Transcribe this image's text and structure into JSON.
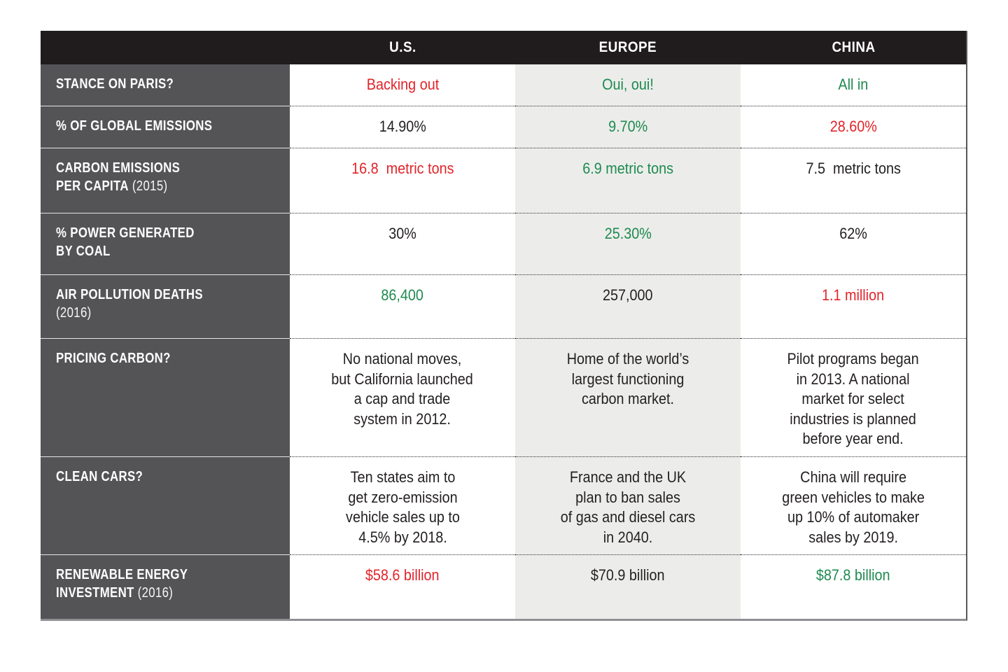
{
  "palette": {
    "red": "#e2242a",
    "green": "#1e8a4f",
    "dark": "#231f20",
    "header_bg": "#201c1d",
    "label_bg": "#545457",
    "europe_bg": "#ecedeb",
    "border_right": "#58585a",
    "border_bottom": "#909094"
  },
  "chart_data": {
    "type": "table",
    "columns": [
      "U.S.",
      "EUROPE",
      "CHINA"
    ],
    "rows": [
      {
        "label": "STANCE ON PARIS?",
        "paren": "",
        "cells": [
          {
            "text": "Backing out",
            "color": "red"
          },
          {
            "text": "Oui, oui!",
            "color": "green"
          },
          {
            "text": "All in",
            "color": "green"
          }
        ]
      },
      {
        "label": "% OF GLOBAL EMISSIONS",
        "paren": "",
        "cells": [
          {
            "text": "14.90%",
            "color": "dark"
          },
          {
            "text": "9.70%",
            "color": "green"
          },
          {
            "text": "28.60%",
            "color": "red"
          }
        ]
      },
      {
        "label": "CARBON EMISSIONS\nPER CAPITA",
        "paren": " (2015)",
        "cells": [
          {
            "text": "16.8  metric tons",
            "color": "red"
          },
          {
            "text": "6.9 metric tons",
            "color": "green"
          },
          {
            "text": "7.5  metric tons",
            "color": "dark"
          }
        ]
      },
      {
        "label": "% POWER GENERATED\nBY COAL",
        "paren": "",
        "cells": [
          {
            "text": "30%",
            "color": "dark"
          },
          {
            "text": "25.30%",
            "color": "green"
          },
          {
            "text": "62%",
            "color": "dark"
          }
        ]
      },
      {
        "label": "AIR POLLUTION DEATHS\n",
        "paren": "(2016)",
        "cells": [
          {
            "text": "86,400",
            "color": "green"
          },
          {
            "text": "257,000",
            "color": "dark"
          },
          {
            "text": "1.1 million",
            "color": "red"
          }
        ]
      },
      {
        "label": "PRICING CARBON?",
        "paren": "",
        "cells": [
          {
            "text": "No national moves,\nbut California launched\na cap and trade\nsystem in 2012.",
            "color": "dark"
          },
          {
            "text": "Home of the world’s\nlargest functioning\ncarbon market.",
            "color": "dark"
          },
          {
            "text": "Pilot programs began\nin 2013. A national\nmarket for select\nindustries is planned\nbefore year end.",
            "color": "dark"
          }
        ]
      },
      {
        "label": "CLEAN CARS?",
        "paren": "",
        "cells": [
          {
            "text": "Ten states aim to\nget zero-emission\nvehicle sales up to\n4.5% by 2018.",
            "color": "dark"
          },
          {
            "text": "France and the UK\nplan to ban sales\nof gas and diesel cars\nin 2040.",
            "color": "dark"
          },
          {
            "text": "China will require\ngreen vehicles to make\nup 10% of automaker\nsales by 2019.",
            "color": "dark"
          }
        ]
      },
      {
        "label": "RENEWABLE ENERGY\nINVESTMENT",
        "paren": " (2016)",
        "cells": [
          {
            "text": "$58.6 billion",
            "color": "red"
          },
          {
            "text": "$70.9 billion",
            "color": "dark"
          },
          {
            "text": "$87.8 billion",
            "color": "green"
          }
        ]
      }
    ]
  }
}
